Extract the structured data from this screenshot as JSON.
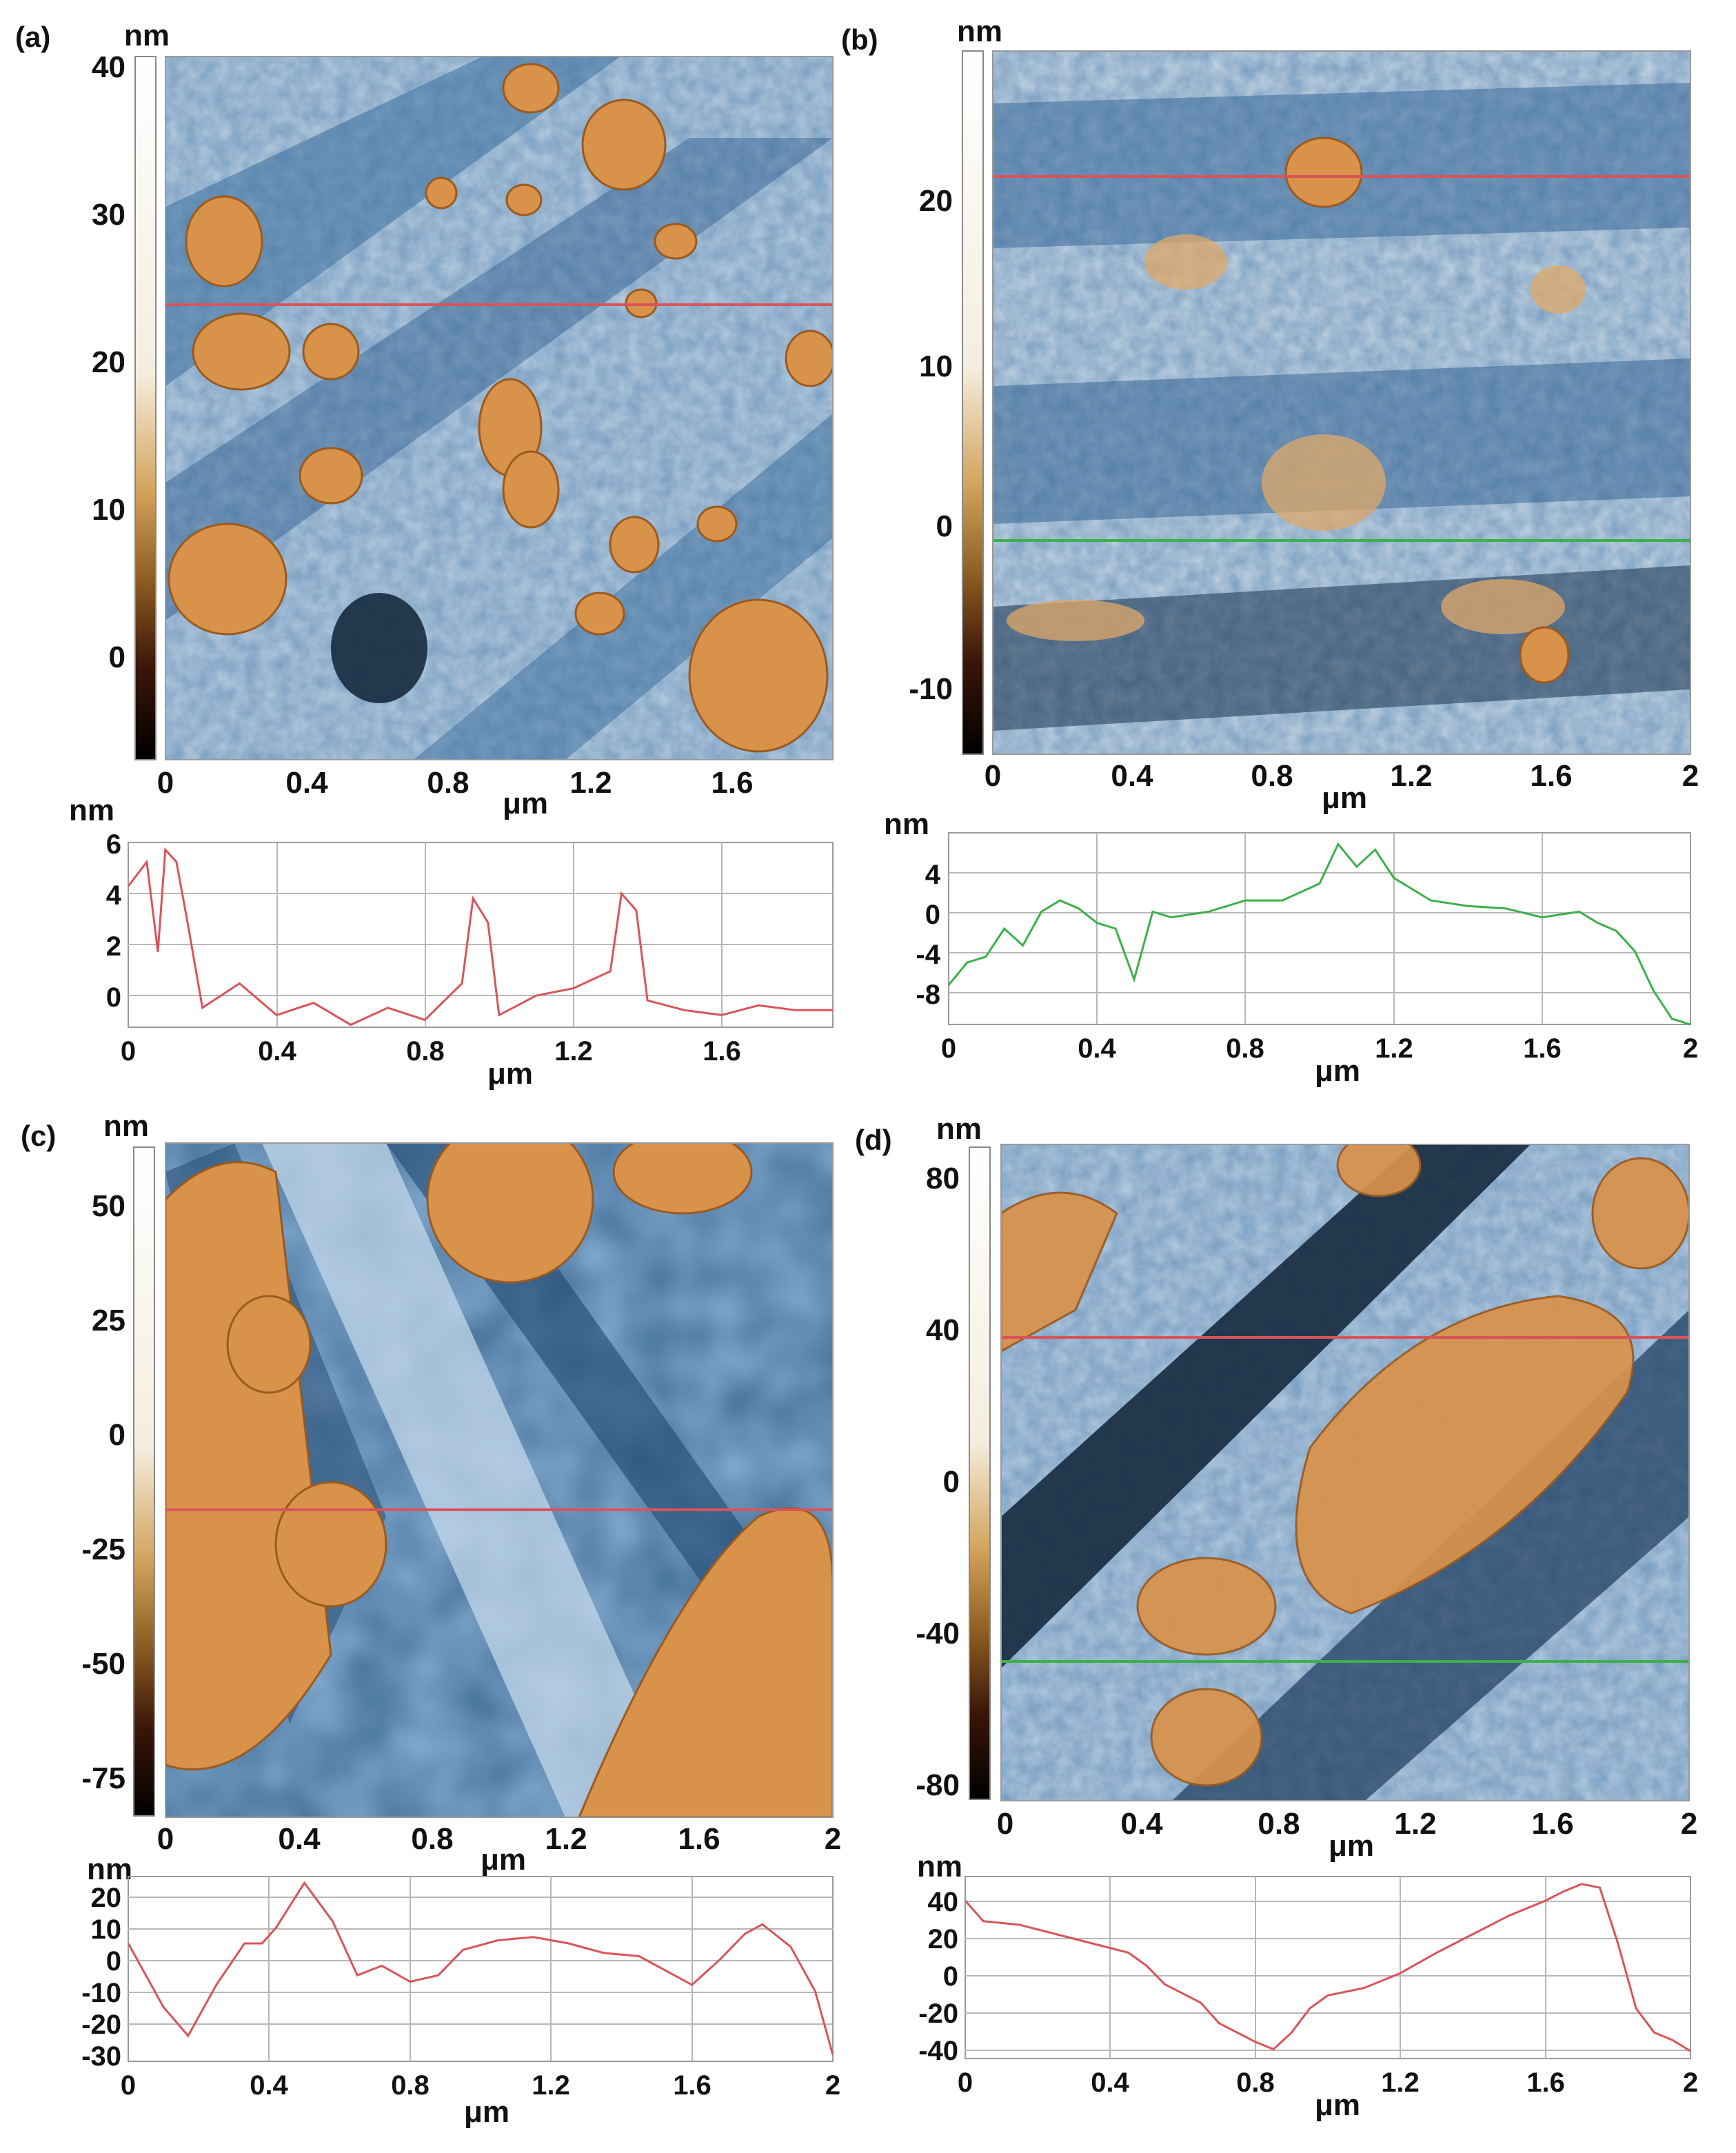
{
  "panels": {
    "a": {
      "label": "(a)",
      "colorbar": {
        "unit": "nm",
        "ticks": [
          "40",
          "30",
          "20",
          "10",
          "0"
        ]
      },
      "image_axis": {
        "ticks": [
          "0",
          "0.4",
          "0.8",
          "1.2",
          "1.6"
        ],
        "unit": "μm"
      },
      "profile": {
        "y_unit": "nm",
        "y_ticks": [
          "6",
          "4",
          "2",
          "0"
        ],
        "x_ticks": [
          "0",
          "0.4",
          "0.8",
          "1.2",
          "1.6"
        ],
        "x_unit": "μm"
      }
    },
    "b": {
      "label": "(b)",
      "colorbar": {
        "unit": "nm",
        "ticks": [
          "20",
          "10",
          "0",
          "-10"
        ]
      },
      "image_axis": {
        "ticks": [
          "0",
          "0.4",
          "0.8",
          "1.2",
          "1.6",
          "2"
        ],
        "unit": "μm"
      },
      "profile": {
        "y_unit": "nm",
        "y_ticks": [
          "4",
          "0",
          "-4",
          "-8"
        ],
        "x_ticks": [
          "0",
          "0.4",
          "0.8",
          "1.2",
          "1.6",
          "2"
        ],
        "x_unit": "μm"
      }
    },
    "c": {
      "label": "(c)",
      "colorbar": {
        "unit": "nm",
        "ticks": [
          "50",
          "25",
          "0",
          "-25",
          "-50",
          "-75"
        ]
      },
      "image_axis": {
        "ticks": [
          "0",
          "0.4",
          "0.8",
          "1.2",
          "1.6",
          "2"
        ],
        "unit": "μm"
      },
      "profile": {
        "y_unit": "nm",
        "y_ticks": [
          "20",
          "10",
          "0",
          "-10",
          "-20",
          "-30"
        ],
        "x_ticks": [
          "0",
          "0.4",
          "0.8",
          "1.2",
          "1.6",
          "2"
        ],
        "x_unit": "μm"
      }
    },
    "d": {
      "label": "(d)",
      "colorbar": {
        "unit": "nm",
        "ticks": [
          "80",
          "40",
          "0",
          "-40",
          "-80"
        ]
      },
      "image_axis": {
        "ticks": [
          "0",
          "0.4",
          "0.8",
          "1.2",
          "1.6",
          "2"
        ],
        "unit": "μm"
      },
      "profile": {
        "y_unit": "nm",
        "y_ticks": [
          "40",
          "20",
          "0",
          "-20",
          "-40"
        ],
        "x_ticks": [
          "0",
          "0.4",
          "0.8",
          "1.2",
          "1.6",
          "2"
        ],
        "x_unit": "μm"
      }
    }
  },
  "colors": {
    "orange_feature": "#d9924a",
    "blue_surface": "#3f6f9f",
    "light_surface": "#c8d6e4",
    "dark_surface": "#0e1c2c",
    "profile_red": "#d9545a",
    "profile_green": "#3cb04a"
  },
  "chart_data": [
    {
      "type": "line",
      "x": [
        0,
        0.05,
        0.08,
        0.1,
        0.13,
        0.16,
        0.2,
        0.3,
        0.4,
        0.5,
        0.6,
        0.7,
        0.8,
        0.9,
        0.93,
        0.97,
        1.0,
        1.1,
        1.2,
        1.3,
        1.33,
        1.37,
        1.4,
        1.5,
        1.6,
        1.7,
        1.8,
        1.9
      ],
      "y": [
        4.5,
        5.5,
        1.8,
        6.0,
        5.5,
        3.0,
        -0.5,
        0.5,
        -0.8,
        -0.3,
        -1.2,
        -0.5,
        -1.0,
        0.5,
        4.0,
        3.0,
        -0.8,
        0.0,
        0.3,
        1.0,
        4.2,
        3.5,
        -0.2,
        -0.6,
        -0.8,
        -0.4,
        -0.6,
        -0.6
      ],
      "x_ticks": [
        "0",
        "0.4",
        "0.8",
        "1.2",
        "1.6"
      ],
      "y_ticks": [
        "6",
        "4",
        "2",
        "0"
      ],
      "xlabel": "μm",
      "ylabel": "nm",
      "xlim": [
        0,
        1.9
      ],
      "ylim": [
        -1.3,
        6.3
      ],
      "grid": true
    },
    {
      "type": "line",
      "x": [
        0,
        0.05,
        0.1,
        0.15,
        0.2,
        0.25,
        0.3,
        0.35,
        0.4,
        0.45,
        0.5,
        0.55,
        0.6,
        0.7,
        0.8,
        0.9,
        1.0,
        1.05,
        1.1,
        1.15,
        1.2,
        1.3,
        1.4,
        1.5,
        1.6,
        1.7,
        1.75,
        1.8,
        1.85,
        1.9,
        1.95,
        2.0
      ],
      "y": [
        -6,
        -4,
        -3.5,
        -1,
        -2.5,
        0.5,
        1.5,
        0.8,
        -0.5,
        -1,
        -5.5,
        0.5,
        0,
        0.5,
        1.5,
        1.5,
        3,
        6.5,
        4.5,
        6,
        3.5,
        1.5,
        1,
        0.8,
        0,
        0.5,
        -0.5,
        -1.2,
        -3,
        -6.5,
        -9,
        -9.5
      ],
      "x_ticks": [
        "0",
        "0.4",
        "0.8",
        "1.2",
        "1.6",
        "2"
      ],
      "y_ticks": [
        "4",
        "0",
        "-4",
        "-8"
      ],
      "xlabel": "μm",
      "ylabel": "nm",
      "xlim": [
        0,
        2
      ],
      "ylim": [
        -9.5,
        7.5
      ],
      "grid": true
    },
    {
      "type": "line",
      "x": [
        0,
        0.1,
        0.17,
        0.25,
        0.33,
        0.38,
        0.42,
        0.5,
        0.58,
        0.65,
        0.72,
        0.8,
        0.88,
        0.95,
        1.05,
        1.15,
        1.25,
        1.35,
        1.45,
        1.55,
        1.6,
        1.68,
        1.75,
        1.8,
        1.88,
        1.95,
        2.0
      ],
      "y": [
        5,
        -15,
        -24,
        -8,
        5,
        5,
        10,
        24,
        12,
        -5,
        -2,
        -7,
        -5,
        3,
        6,
        7,
        5,
        2,
        1,
        -5,
        -8,
        0,
        8,
        11,
        4,
        -10,
        -30
      ],
      "x_ticks": [
        "0",
        "0.4",
        "0.8",
        "1.2",
        "1.6",
        "2"
      ],
      "y_ticks": [
        "20",
        "10",
        "0",
        "-10",
        "-20",
        "-30"
      ],
      "xlabel": "μm",
      "ylabel": "nm",
      "xlim": [
        0,
        2
      ],
      "ylim": [
        -32,
        26
      ],
      "grid": true
    },
    {
      "type": "line",
      "x": [
        0,
        0.05,
        0.15,
        0.25,
        0.35,
        0.45,
        0.5,
        0.55,
        0.65,
        0.7,
        0.75,
        0.8,
        0.85,
        0.9,
        0.95,
        1.0,
        1.1,
        1.2,
        1.3,
        1.4,
        1.5,
        1.6,
        1.65,
        1.7,
        1.75,
        1.8,
        1.85,
        1.9,
        1.95,
        2.0
      ],
      "y": [
        33,
        22,
        20,
        15,
        10,
        5,
        -2,
        -12,
        -22,
        -33,
        -38,
        -43,
        -47,
        -38,
        -25,
        -18,
        -14,
        -6,
        5,
        15,
        25,
        33,
        38,
        42,
        40,
        10,
        -25,
        -38,
        -42,
        -48
      ],
      "x_ticks": [
        "0",
        "0.4",
        "0.8",
        "1.2",
        "1.6",
        "2"
      ],
      "y_ticks": [
        "40",
        "20",
        "0",
        "-20",
        "-40"
      ],
      "xlabel": "μm",
      "ylabel": "nm",
      "xlim": [
        0,
        2
      ],
      "ylim": [
        -52,
        46
      ],
      "grid": true
    }
  ]
}
